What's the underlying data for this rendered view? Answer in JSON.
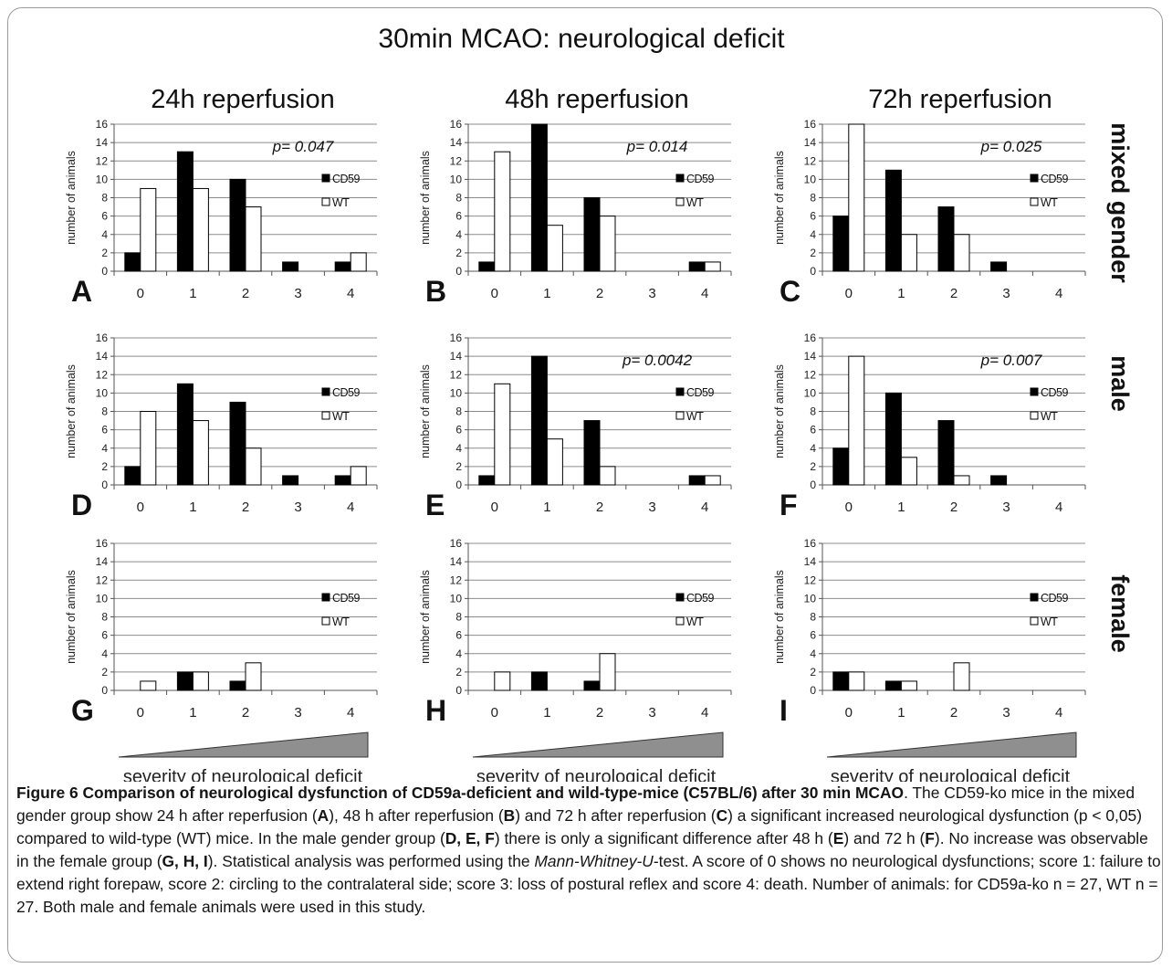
{
  "figure": {
    "title": "30min MCAO: neurological deficit",
    "col_titles": [
      "24h reperfusion",
      "48h reperfusion",
      "72h reperfusion"
    ],
    "row_labels": [
      "mixed gender",
      "male",
      "female"
    ],
    "severity_label": "severity of neurological deficit",
    "colors": {
      "cd59": "#000000",
      "wt": "#ffffff",
      "grid": "#8c8c8c",
      "wedge": "#8f8f8f"
    }
  },
  "caption": {
    "head": "Figure 6 Comparison of neurological dysfunction of CD59a-deficient and wild-type-mice (C57BL/6) after 30 min MCAO",
    "text_1": ". The CD59-ko mice in the mixed gender group show 24 h after reperfusion (",
    "ref_a": "A",
    "text_2": "), 48 h after reperfusion (",
    "ref_b": "B",
    "text_3": ") and 72 h after reperfusion (",
    "ref_c": "C",
    "text_4": ") a significant increased neurological dysfunction (p < 0,05) compared to wild-type (WT) mice. In the male gender group (",
    "ref_def": "D, E, F",
    "text_5": ") there is only a significant difference after 48 h (",
    "ref_e": "E",
    "text_6": ") and 72 h (",
    "ref_f": "F",
    "text_7": "). No increase was observable in the female group (",
    "ref_ghi": "G, H, I",
    "text_8": "). Statistical analysis was performed using the ",
    "test_name": "Mann-Whitney-U",
    "text_9": "-test. A score of 0 shows no neurological dysfunctions; score 1: failure to extend right forepaw, score 2: circling to the contralateral side; score 3: loss of postural reflex and score 4: death. Number of animals: for CD59a-ko n = 27, WT n = 27. Both male and female animals were used in this study."
  },
  "chart_data": [
    {
      "panel": "A",
      "type": "bar",
      "categories": [
        "0",
        "1",
        "2",
        "3",
        "4"
      ],
      "ylabel": "number of animals",
      "ylim": [
        0,
        16
      ],
      "yticks": [
        0,
        2,
        4,
        6,
        8,
        10,
        12,
        14,
        16
      ],
      "legend": "right",
      "p_value": "p= 0.047",
      "series": [
        {
          "name": "CD59",
          "values": [
            2,
            13,
            10,
            1,
            1
          ]
        },
        {
          "name": "WT",
          "values": [
            9,
            9,
            7,
            0,
            2
          ]
        }
      ]
    },
    {
      "panel": "B",
      "type": "bar",
      "categories": [
        "0",
        "1",
        "2",
        "3",
        "4"
      ],
      "ylabel": "number of animals",
      "ylim": [
        0,
        16
      ],
      "yticks": [
        0,
        2,
        4,
        6,
        8,
        10,
        12,
        14,
        16
      ],
      "legend": "right",
      "p_value": "p= 0.014",
      "series": [
        {
          "name": "CD59",
          "values": [
            1,
            16,
            8,
            0,
            1
          ]
        },
        {
          "name": "WT",
          "values": [
            13,
            5,
            6,
            0,
            1
          ]
        }
      ]
    },
    {
      "panel": "C",
      "type": "bar",
      "categories": [
        "0",
        "1",
        "2",
        "3",
        "4"
      ],
      "ylabel": "number of animals",
      "ylim": [
        0,
        16
      ],
      "yticks": [
        0,
        2,
        4,
        6,
        8,
        10,
        12,
        14,
        16
      ],
      "legend": "right",
      "p_value": "p= 0.025",
      "series": [
        {
          "name": "CD59",
          "values": [
            6,
            11,
            7,
            1,
            0
          ]
        },
        {
          "name": "WT",
          "values": [
            16,
            4,
            4,
            0,
            0
          ]
        }
      ]
    },
    {
      "panel": "D",
      "type": "bar",
      "categories": [
        "0",
        "1",
        "2",
        "3",
        "4"
      ],
      "ylabel": "number of animals",
      "ylim": [
        0,
        16
      ],
      "yticks": [
        0,
        2,
        4,
        6,
        8,
        10,
        12,
        14,
        16
      ],
      "legend": "right",
      "p_value": "",
      "series": [
        {
          "name": "CD59",
          "values": [
            2,
            11,
            9,
            1,
            1
          ]
        },
        {
          "name": "WT",
          "values": [
            8,
            7,
            4,
            0,
            2
          ]
        }
      ]
    },
    {
      "panel": "E",
      "type": "bar",
      "categories": [
        "0",
        "1",
        "2",
        "3",
        "4"
      ],
      "ylabel": "number of animals",
      "ylim": [
        0,
        16
      ],
      "yticks": [
        0,
        2,
        4,
        6,
        8,
        10,
        12,
        14,
        16
      ],
      "legend": "right",
      "p_value": "p= 0.0042",
      "series": [
        {
          "name": "CD59",
          "values": [
            1,
            14,
            7,
            0,
            1
          ]
        },
        {
          "name": "WT",
          "values": [
            11,
            5,
            2,
            0,
            1
          ]
        }
      ]
    },
    {
      "panel": "F",
      "type": "bar",
      "categories": [
        "0",
        "1",
        "2",
        "3",
        "4"
      ],
      "ylabel": "number of animals",
      "ylim": [
        0,
        16
      ],
      "yticks": [
        0,
        2,
        4,
        6,
        8,
        10,
        12,
        14,
        16
      ],
      "legend": "right",
      "p_value": "p= 0.007",
      "series": [
        {
          "name": "CD59",
          "values": [
            4,
            10,
            7,
            1,
            0
          ]
        },
        {
          "name": "WT",
          "values": [
            14,
            3,
            1,
            0,
            0
          ]
        }
      ]
    },
    {
      "panel": "G",
      "type": "bar",
      "categories": [
        "0",
        "1",
        "2",
        "3",
        "4"
      ],
      "ylabel": "number of animals",
      "ylim": [
        0,
        16
      ],
      "yticks": [
        0,
        2,
        4,
        6,
        8,
        10,
        12,
        14,
        16
      ],
      "legend": "right",
      "p_value": "",
      "series": [
        {
          "name": "CD59",
          "values": [
            0,
            2,
            1,
            0,
            0
          ]
        },
        {
          "name": "WT",
          "values": [
            1,
            2,
            3,
            0,
            0
          ]
        }
      ]
    },
    {
      "panel": "H",
      "type": "bar",
      "categories": [
        "0",
        "1",
        "2",
        "3",
        "4"
      ],
      "ylabel": "number of animals",
      "ylim": [
        0,
        16
      ],
      "yticks": [
        0,
        2,
        4,
        6,
        8,
        10,
        12,
        14,
        16
      ],
      "legend": "right",
      "p_value": "",
      "series": [
        {
          "name": "CD59",
          "values": [
            0,
            2,
            1,
            0,
            0
          ]
        },
        {
          "name": "WT",
          "values": [
            2,
            0,
            4,
            0,
            0
          ]
        }
      ]
    },
    {
      "panel": "I",
      "type": "bar",
      "categories": [
        "0",
        "1",
        "2",
        "3",
        "4"
      ],
      "ylabel": "number of animals",
      "ylim": [
        0,
        16
      ],
      "yticks": [
        0,
        2,
        4,
        6,
        8,
        10,
        12,
        14,
        16
      ],
      "legend": "right",
      "p_value": "",
      "series": [
        {
          "name": "CD59",
          "values": [
            2,
            1,
            0,
            0,
            0
          ]
        },
        {
          "name": "WT",
          "values": [
            2,
            1,
            3,
            0,
            0
          ]
        }
      ]
    }
  ]
}
